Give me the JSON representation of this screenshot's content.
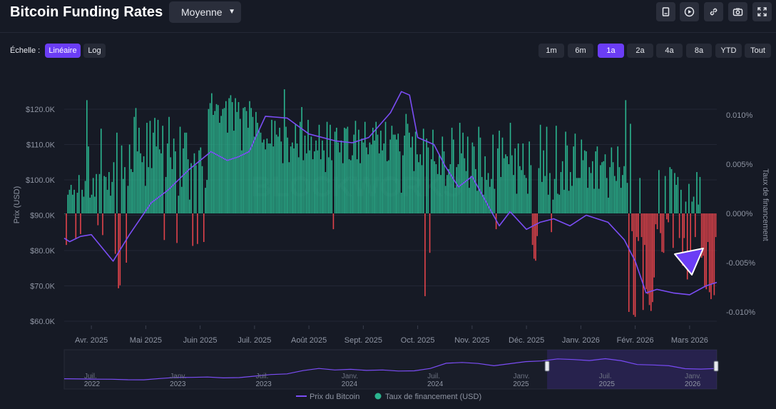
{
  "header": {
    "title": "Bitcoin Funding Rates",
    "aggregation_select": "Moyenne",
    "toolbar": [
      {
        "name": "note-icon"
      },
      {
        "name": "play-icon"
      },
      {
        "name": "link-icon"
      },
      {
        "name": "camera-icon"
      },
      {
        "name": "fullscreen-icon"
      }
    ]
  },
  "scale": {
    "label": "Échelle :",
    "options": [
      "Linéaire",
      "Log"
    ],
    "selected": "Linéaire"
  },
  "ranges": {
    "options": [
      "1m",
      "6m",
      "1a",
      "2a",
      "4a",
      "8a",
      "YTD",
      "Tout"
    ],
    "selected": "1a"
  },
  "colors": {
    "background": "#161a25",
    "price_line": "#7b4df5",
    "positive_bar": "#2bb58f",
    "negative_bar": "#e2434b",
    "grid": "#232735",
    "axis_text": "#8f95a3",
    "accent": "#6b3df5"
  },
  "chart_data": {
    "type": "bar+line",
    "title": "Bitcoin Funding Rates",
    "x_tick_labels": [
      "Avr. 2025",
      "Mai 2025",
      "Juin 2025",
      "Juil. 2025",
      "Août 2025",
      "Sept. 2025",
      "Oct. 2025",
      "Nov. 2025",
      "Déc. 2025",
      "Janv. 2026",
      "Févr. 2026",
      "Mars 2026"
    ],
    "left_axis": {
      "label": "Prix (USD)",
      "range": [
        60000,
        125000
      ],
      "ticks": [
        60000,
        70000,
        80000,
        90000,
        100000,
        110000,
        120000
      ],
      "tick_labels": [
        "$60.0K",
        "$70.0K",
        "$80.0K",
        "$90.0K",
        "$100.0K",
        "$110.0K",
        "$120.0K"
      ]
    },
    "right_axis": {
      "label": "Taux de financement",
      "range": [
        -0.0125,
        0.0125
      ],
      "ticks": [
        -0.01,
        -0.005,
        0.0,
        0.005,
        0.01
      ],
      "tick_labels": [
        "-0.010%",
        "-0.005%",
        "0.000%",
        "0.005%",
        "0.010%"
      ]
    },
    "series": [
      {
        "name": "Prix du Bitcoin",
        "axis": "left",
        "type": "line",
        "month_index": [
          0,
          0.1,
          0.3,
          0.5,
          0.9,
          1.2,
          1.6,
          1.9,
          2.3,
          2.7,
          3.0,
          3.2,
          3.4,
          3.7,
          4.1,
          4.5,
          5.0,
          5.3,
          5.6,
          6.0,
          6.2,
          6.35,
          6.5,
          6.8,
          7.0,
          7.25,
          7.5,
          7.75,
          8.0,
          8.2,
          8.5,
          8.75,
          9.0,
          9.3,
          9.6,
          10.0,
          10.3,
          10.5,
          10.7,
          10.9,
          11.2,
          11.5,
          11.8,
          12.0
        ],
        "values": [
          83500,
          82500,
          84000,
          84500,
          77000,
          84500,
          93500,
          97000,
          103000,
          108000,
          105500,
          106500,
          108000,
          118000,
          117500,
          113000,
          111000,
          110500,
          112000,
          119000,
          125000,
          124000,
          112000,
          110000,
          104000,
          98000,
          101000,
          94000,
          87000,
          91000,
          86000,
          88000,
          89000,
          87000,
          90000,
          88000,
          83000,
          77000,
          68000,
          69000,
          68000,
          67500,
          70000,
          71000
        ]
      },
      {
        "name": "Taux de financement (USD)",
        "axis": "right",
        "type": "bar",
        "values": [
          0.0,
          -0.0032,
          0.0019,
          0.0024,
          0.0029,
          0.0019,
          0.0024,
          -0.0026,
          0.0021,
          0.0039,
          -0.0021,
          0.0024,
          0.0017,
          0.0033,
          0.0115,
          0.0068,
          0.0016,
          0.0019,
          0.0036,
          0.0017,
          0.004,
          -0.0012,
          0.004,
          0.0086,
          -0.0022,
          0.0038,
          0.0037,
          0.0024,
          0.0042,
          0.0018,
          0.0032,
          0.0052,
          -0.0041,
          0.0082,
          -0.0076,
          -0.0073,
          0.0069,
          0.0035,
          0.0047,
          -0.005,
          0.0028,
          0.007,
          0.0045,
          0.0042,
          0.0098,
          0.0107,
          0.0063,
          0.0087,
          0.0061,
          0.0052,
          0.0058,
          0.0028,
          0.0092,
          0.0047,
          0.0094,
          0.0046,
          0.0082,
          0.0097,
          0.0068,
          0.0095,
          0.0065,
          0.0061,
          0.0089,
          -0.0027,
          0.0037,
          0.0071,
          0.0098,
          0.0057,
          0.0045,
          0.0076,
          0.0063,
          -0.003,
          0.0018,
          0.0088,
          0.0027,
          0.0066,
          0.0082,
          0.0082,
          0.0055,
          0.0014,
          0.0051,
          -0.0033,
          0.0061,
          0.0049,
          -0.0031,
          0.0064,
          0.0067,
          0.0048,
          -0.0029,
          0.0026,
          0.0034,
          0.0106,
          0.0112,
          0.0122,
          0.01,
          0.0104,
          0.0111,
          0.011,
          0.0092,
          0.0099,
          0.0106,
          0.0107,
          0.0114,
          0.0082,
          0.0117,
          0.012,
          0.0113,
          0.0084,
          0.0117,
          0.0103,
          0.0113,
          0.0096,
          0.0064,
          0.0107,
          0.0108,
          0.0104,
          0.0087,
          0.0114,
          0.0107,
          0.0098,
          0.0078,
          0.0103,
          0.0092,
          0.0084,
          0.0082,
          0.0072,
          0.0075,
          0.0065,
          0.0076,
          0.0071,
          0.0071,
          0.0095,
          0.0068,
          0.0094,
          0.008,
          0.0078,
          0.0087,
          0.0073,
          0.0051,
          0.0126,
          0.0088,
          0.0077,
          0.0052,
          0.0068,
          0.0072,
          0.0066,
          0.0091,
          0.0071,
          0.0057,
          0.0093,
          0.0108,
          0.0054,
          0.0079,
          0.0061,
          0.0095,
          0.0064,
          0.0078,
          0.0055,
          0.0063,
          0.0074,
          0.0064,
          0.009,
          0.0055,
          0.0074,
          0.0064,
          0.0042,
          0.0093,
          0.0057,
          0.009,
          0.0054,
          -0.0016,
          0.0083,
          0.0087,
          0.0072,
          0.0062,
          0.0074,
          0.0051,
          0.0087,
          0.0086,
          0.0088,
          0.0055,
          0.0054,
          0.0059,
          0.008,
          0.0094,
          0.0055,
          0.0085,
          0.0051,
          0.0076,
          0.0072,
          0.0093,
          0.0067,
          0.006,
          0.0072,
          0.007,
          0.0087,
          0.0074,
          0.0093,
          0.008,
          0.0061,
          0.0084,
          0.0064,
          0.0071,
          0.0093,
          0.0053,
          0.0054,
          0.0075,
          0.0089,
          0.008,
          0.008,
          0.0075,
          0.0081,
          0.0063,
          0.0021,
          0.0059,
          0.0079,
          0.0101,
          0.0091,
          0.0082,
          0.0067,
          0.0078,
          0.0043,
          0.0083,
          0.006,
          0.0052,
          0.006,
          0.0049,
          0.0086,
          -0.0084,
          0.0076,
          0.0067,
          -0.004,
          0.0055,
          0.0085,
          0.0053,
          0.005,
          0.004,
          0.006,
          0.0039,
          0.0078,
          0.0063,
          0.0028,
          0.0039,
          0.0045,
          0.005,
          0.0087,
          0.0075,
          0.0026,
          0.0047,
          0.005,
          0.0092,
          0.0061,
          0.0082,
          0.0056,
          0.0043,
          0.0078,
          0.0026,
          0.0038,
          0.0072,
          0.0068,
          0.0045,
          0.0023,
          0.0088,
          0.0077,
          0.0037,
          0.0019,
          0.0058,
          0.0034,
          0.0041,
          0.0027,
          0.0035,
          0.008,
          0.0025,
          -0.0016,
          0.0066,
          0.0084,
          0.0037,
          0.0077,
          0.0056,
          0.006,
          0.0058,
          0.005,
          0.0092,
          0.0059,
          0.0039,
          0.0066,
          0.002,
          0.0071,
          0.0048,
          0.0044,
          0.0071,
          0.0039,
          0.0036,
          0.002,
          0.0073,
          0.0049,
          -0.0032,
          -0.0046,
          -0.0048,
          -0.0023,
          0.0046,
          0.009,
          0.0032,
          0.0064,
          0.0038,
          0.0088,
          0.0019,
          0.0041,
          -0.0019,
          0.0014,
          0.0035,
          0.0089,
          0.002,
          0.0019,
          0.0042,
          0.0053,
          0.0024,
          0.0083,
          0.0069,
          0.0023,
          0.0042,
          0.0028,
          0.0068,
          0.0081,
          0.0036,
          0.0036,
          0.0036,
          0.0075,
          0.0054,
          0.0064,
          0.0063,
          0.0026,
          0.0047,
          0.0041,
          0.0053,
          0.0025,
          0.0063,
          0.0068,
          0.0025,
          0.0049,
          0.0052,
          0.0053,
          0.006,
          0.0036,
          0.0016,
          0.0047,
          0.0067,
          0.0052,
          0.0038,
          0.0033,
          0.0068,
          0.0047,
          0.0026,
          0.0039,
          0.0048,
          0.0115,
          0.0031,
          -0.01,
          0.0091,
          -0.0018,
          -0.0103,
          -0.0105,
          -0.0024,
          -0.0028,
          0.0036,
          -0.0024,
          -0.0098,
          -0.0032,
          -0.0077,
          -0.0082,
          -0.0093,
          -0.0099,
          -0.009,
          -0.0065,
          -0.0011,
          -0.0016,
          0.0044,
          -0.002,
          -0.0039,
          -0.004,
          0.0038,
          -0.0006,
          -0.0009,
          0.0047,
          0.0045,
          -0.0035,
          0.0041,
          0.0029,
          0.0037,
          -0.0025,
          0.0024,
          -0.0053,
          -0.0025,
          0.0012,
          -0.0067,
          0.003,
          -0.006,
          0.0012,
          0.0017,
          -0.0024,
          0.0042,
          0.0009,
          0.0037,
          -0.0045,
          -0.0043,
          -0.0075,
          -0.0077,
          -0.0029,
          -0.008,
          -0.0087,
          -0.0071,
          -0.0083,
          -0.0024
        ]
      }
    ],
    "navigator": {
      "tick_labels": [
        {
          "month": "Juil.",
          "year": "2022"
        },
        {
          "month": "Janv.",
          "year": "2023"
        },
        {
          "month": "Juil.",
          "year": "2023"
        },
        {
          "month": "Janv.",
          "year": "2024"
        },
        {
          "month": "Juil.",
          "year": "2024"
        },
        {
          "month": "Janv.",
          "year": "2025"
        },
        {
          "month": "Juil.",
          "year": "2025"
        },
        {
          "month": "Janv.",
          "year": "2026"
        }
      ],
      "price_history": [
        22000,
        21000,
        20000,
        19500,
        17000,
        16800,
        23000,
        28000,
        28500,
        30000,
        26000,
        27500,
        34500,
        42000,
        45000,
        61000,
        71000,
        64000,
        67000,
        62000,
        64000,
        59000,
        60000,
        71000,
        96000,
        100000,
        95000,
        84000,
        94000,
        104000,
        107000,
        117000,
        114000,
        109000,
        118000,
        108000,
        90000,
        88000,
        84000,
        70000,
        68000,
        71000
      ],
      "selected_start_fraction": 0.74,
      "selected_end_fraction": 1.0
    },
    "legend": [
      {
        "label": "Prix du Bitcoin",
        "marker": "line"
      },
      {
        "label": "Taux de financement (USD)",
        "marker": "dot"
      }
    ],
    "annotation": "purple triangle pointer"
  }
}
